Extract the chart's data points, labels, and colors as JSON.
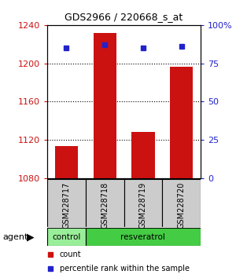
{
  "title": "GDS2966 / 220668_s_at",
  "samples": [
    "GSM228717",
    "GSM228718",
    "GSM228719",
    "GSM228720"
  ],
  "counts": [
    1113,
    1232,
    1128,
    1196
  ],
  "percentiles": [
    85,
    87,
    85,
    86
  ],
  "ylim_left": [
    1080,
    1240
  ],
  "ylim_right": [
    0,
    100
  ],
  "yticks_left": [
    1080,
    1120,
    1160,
    1200,
    1240
  ],
  "yticks_right": [
    0,
    25,
    50,
    75,
    100
  ],
  "ytick_labels_right": [
    "0",
    "25",
    "50",
    "75",
    "100%"
  ],
  "bar_color": "#cc1111",
  "dot_color": "#2222cc",
  "groups": [
    "control",
    "resveratrol"
  ],
  "group_sample_counts": [
    1,
    3
  ],
  "group_colors": [
    "#99ee99",
    "#44cc44"
  ],
  "agent_label": "agent",
  "legend_items": [
    {
      "label": "count",
      "color": "#cc1111"
    },
    {
      "label": "percentile rank within the sample",
      "color": "#2222cc"
    }
  ],
  "background_color": "#ffffff",
  "plot_bg": "#ffffff",
  "label_area_color": "#cccccc",
  "bar_width": 0.6
}
